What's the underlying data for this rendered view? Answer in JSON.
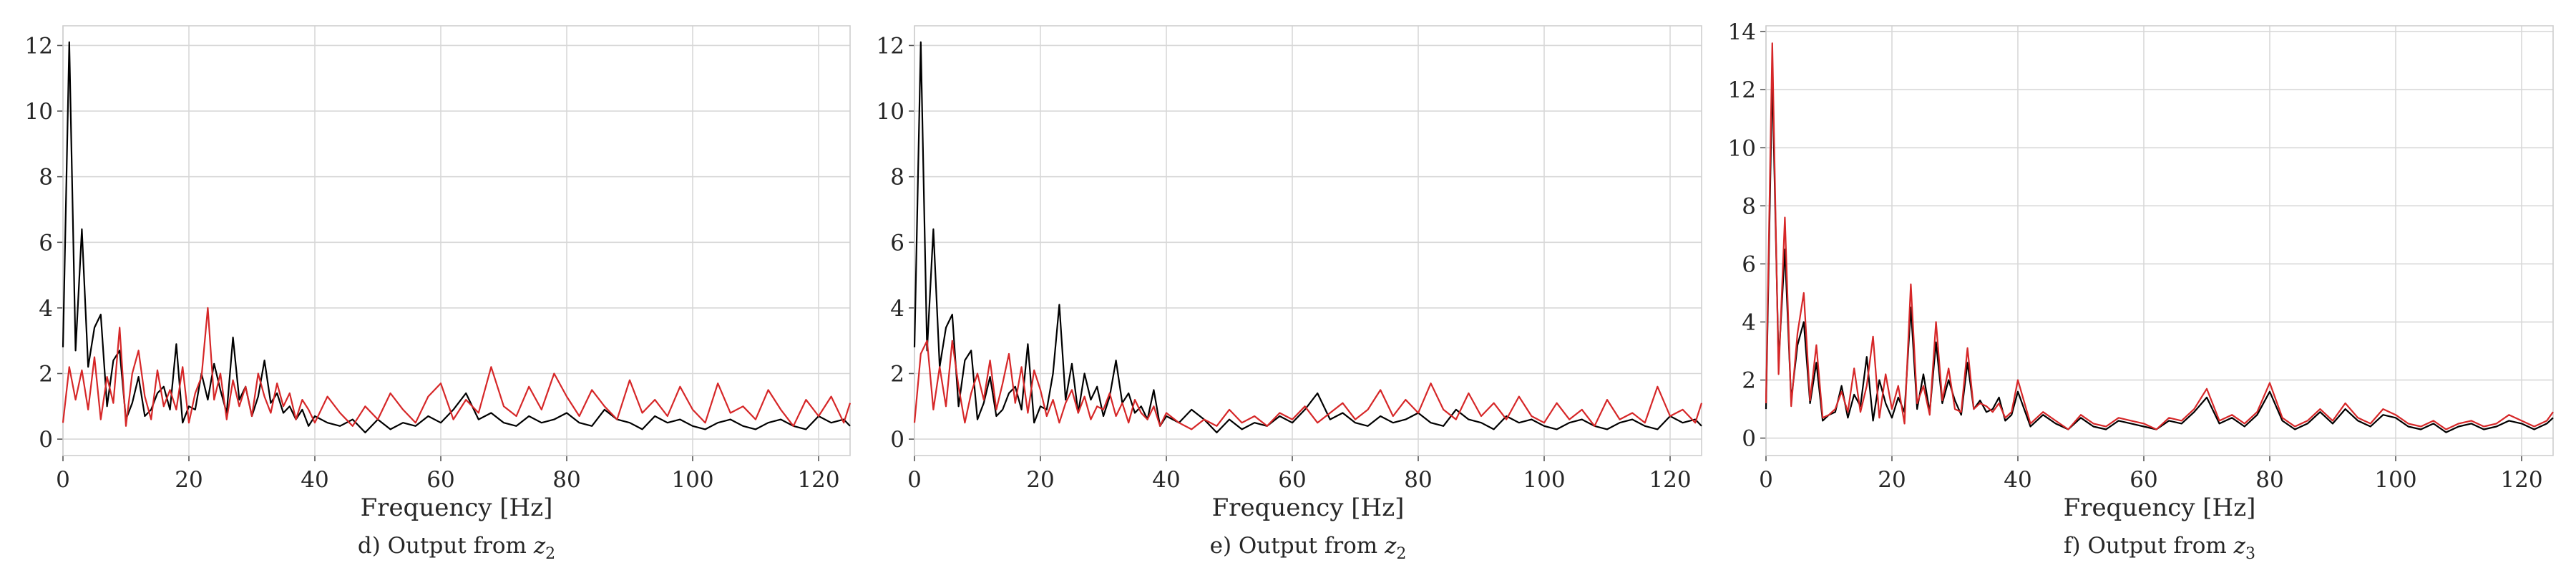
{
  "colors": {
    "series_black": "#000000",
    "series_red": "#d62728"
  },
  "chart_data": [
    {
      "type": "line",
      "caption_prefix": "d) Output from ",
      "caption_var": "z",
      "caption_sub": "2",
      "xlabel": "Frequency [Hz]",
      "ylabel": "",
      "xlim": [
        0,
        125
      ],
      "ylim": [
        -0.5,
        12.6
      ],
      "xticks": [
        0,
        20,
        40,
        60,
        80,
        100,
        120
      ],
      "yticks": [
        0,
        2,
        4,
        6,
        8,
        10,
        12
      ],
      "grid": true,
      "series": [
        {
          "color": "#000000",
          "x": [
            0,
            1,
            2,
            3,
            4,
            5,
            6,
            7,
            8,
            9,
            10,
            11,
            12,
            13,
            14,
            15,
            16,
            17,
            18,
            19,
            20,
            21,
            22,
            23,
            24,
            25,
            26,
            27,
            28,
            29,
            30,
            31,
            32,
            33,
            34,
            35,
            36,
            37,
            38,
            39,
            40,
            42,
            44,
            46,
            48,
            50,
            52,
            54,
            56,
            58,
            60,
            62,
            64,
            66,
            68,
            70,
            72,
            74,
            76,
            78,
            80,
            82,
            84,
            86,
            88,
            90,
            92,
            94,
            96,
            98,
            100,
            102,
            104,
            106,
            108,
            110,
            112,
            114,
            116,
            118,
            120,
            122,
            124,
            125
          ],
          "values": [
            2.8,
            12.1,
            2.7,
            6.4,
            2.2,
            3.4,
            3.8,
            1.0,
            2.4,
            2.7,
            0.6,
            1.1,
            1.9,
            0.7,
            0.9,
            1.4,
            1.6,
            0.9,
            2.9,
            0.5,
            1.0,
            0.9,
            2.0,
            1.2,
            2.3,
            1.5,
            0.8,
            3.1,
            1.2,
            1.6,
            0.7,
            1.3,
            2.4,
            1.1,
            1.4,
            0.8,
            1.0,
            0.6,
            0.9,
            0.4,
            0.7,
            0.5,
            0.4,
            0.6,
            0.2,
            0.6,
            0.3,
            0.5,
            0.4,
            0.7,
            0.5,
            0.9,
            1.4,
            0.6,
            0.8,
            0.5,
            0.4,
            0.7,
            0.5,
            0.6,
            0.8,
            0.5,
            0.4,
            0.9,
            0.6,
            0.5,
            0.3,
            0.7,
            0.5,
            0.6,
            0.4,
            0.3,
            0.5,
            0.6,
            0.4,
            0.3,
            0.5,
            0.6,
            0.4,
            0.3,
            0.7,
            0.5,
            0.6,
            0.4
          ]
        },
        {
          "color": "#d62728",
          "x": [
            0,
            1,
            2,
            3,
            4,
            5,
            6,
            7,
            8,
            9,
            10,
            11,
            12,
            13,
            14,
            15,
            16,
            17,
            18,
            19,
            20,
            21,
            22,
            23,
            24,
            25,
            26,
            27,
            28,
            29,
            30,
            31,
            32,
            33,
            34,
            35,
            36,
            37,
            38,
            39,
            40,
            42,
            44,
            46,
            48,
            50,
            52,
            54,
            56,
            58,
            60,
            62,
            64,
            66,
            68,
            70,
            72,
            74,
            76,
            78,
            80,
            82,
            84,
            86,
            88,
            90,
            92,
            94,
            96,
            98,
            100,
            102,
            104,
            106,
            108,
            110,
            112,
            114,
            116,
            118,
            120,
            122,
            124,
            125
          ],
          "values": [
            0.5,
            2.2,
            1.2,
            2.1,
            0.9,
            2.5,
            0.6,
            1.9,
            1.1,
            3.4,
            0.4,
            2.0,
            2.7,
            1.3,
            0.6,
            2.1,
            1.0,
            1.5,
            0.9,
            2.2,
            0.5,
            1.4,
            1.9,
            4.0,
            1.2,
            2.0,
            0.6,
            1.8,
            1.0,
            1.6,
            0.7,
            2.0,
            1.3,
            0.8,
            1.7,
            1.0,
            1.4,
            0.6,
            1.2,
            0.9,
            0.5,
            1.3,
            0.8,
            0.4,
            1.0,
            0.6,
            1.4,
            0.9,
            0.5,
            1.3,
            1.7,
            0.6,
            1.2,
            0.8,
            2.2,
            1.0,
            0.7,
            1.6,
            0.9,
            2.0,
            1.3,
            0.7,
            1.5,
            1.0,
            0.6,
            1.8,
            0.8,
            1.2,
            0.7,
            1.6,
            0.9,
            0.5,
            1.7,
            0.8,
            1.0,
            0.6,
            1.5,
            0.9,
            0.4,
            1.2,
            0.7,
            1.3,
            0.5,
            1.1
          ]
        }
      ]
    },
    {
      "type": "line",
      "caption_prefix": "e) Output from ",
      "caption_var": "z",
      "caption_sub": "2",
      "xlabel": "Frequency [Hz]",
      "ylabel": "",
      "xlim": [
        0,
        125
      ],
      "ylim": [
        -0.5,
        12.6
      ],
      "xticks": [
        0,
        20,
        40,
        60,
        80,
        100,
        120
      ],
      "yticks": [
        0,
        2,
        4,
        6,
        8,
        10,
        12
      ],
      "grid": true,
      "series": [
        {
          "color": "#000000",
          "x": [
            0,
            1,
            2,
            3,
            4,
            5,
            6,
            7,
            8,
            9,
            10,
            11,
            12,
            13,
            14,
            15,
            16,
            17,
            18,
            19,
            20,
            21,
            22,
            23,
            24,
            25,
            26,
            27,
            28,
            29,
            30,
            31,
            32,
            33,
            34,
            35,
            36,
            37,
            38,
            39,
            40,
            42,
            44,
            46,
            48,
            50,
            52,
            54,
            56,
            58,
            60,
            62,
            64,
            66,
            68,
            70,
            72,
            74,
            76,
            78,
            80,
            82,
            84,
            86,
            88,
            90,
            92,
            94,
            96,
            98,
            100,
            102,
            104,
            106,
            108,
            110,
            112,
            114,
            116,
            118,
            120,
            122,
            124,
            125
          ],
          "values": [
            2.8,
            12.1,
            2.7,
            6.4,
            2.2,
            3.4,
            3.8,
            1.0,
            2.4,
            2.7,
            0.6,
            1.1,
            1.9,
            0.7,
            0.9,
            1.4,
            1.6,
            0.9,
            2.9,
            0.5,
            1.0,
            0.9,
            2.0,
            4.1,
            1.2,
            2.3,
            0.8,
            2.0,
            1.2,
            1.6,
            0.7,
            1.3,
            2.4,
            1.1,
            1.4,
            0.8,
            1.0,
            0.6,
            1.5,
            0.4,
            0.7,
            0.5,
            0.9,
            0.6,
            0.2,
            0.6,
            0.3,
            0.5,
            0.4,
            0.7,
            0.5,
            0.9,
            1.4,
            0.6,
            0.8,
            0.5,
            0.4,
            0.7,
            0.5,
            0.6,
            0.8,
            0.5,
            0.4,
            0.9,
            0.6,
            0.5,
            0.3,
            0.7,
            0.5,
            0.6,
            0.4,
            0.3,
            0.5,
            0.6,
            0.4,
            0.3,
            0.5,
            0.6,
            0.4,
            0.3,
            0.7,
            0.5,
            0.6,
            0.4
          ]
        },
        {
          "color": "#d62728",
          "x": [
            0,
            1,
            2,
            3,
            4,
            5,
            6,
            7,
            8,
            9,
            10,
            11,
            12,
            13,
            14,
            15,
            16,
            17,
            18,
            19,
            20,
            21,
            22,
            23,
            24,
            25,
            26,
            27,
            28,
            29,
            30,
            31,
            32,
            33,
            34,
            35,
            36,
            37,
            38,
            39,
            40,
            42,
            44,
            46,
            48,
            50,
            52,
            54,
            56,
            58,
            60,
            62,
            64,
            66,
            68,
            70,
            72,
            74,
            76,
            78,
            80,
            82,
            84,
            86,
            88,
            90,
            92,
            94,
            96,
            98,
            100,
            102,
            104,
            106,
            108,
            110,
            112,
            114,
            116,
            118,
            120,
            122,
            124,
            125
          ],
          "values": [
            0.5,
            2.6,
            3.0,
            0.9,
            2.2,
            1.0,
            3.0,
            1.6,
            0.5,
            1.4,
            2.0,
            1.2,
            2.4,
            0.9,
            1.7,
            2.6,
            1.1,
            2.2,
            0.8,
            2.1,
            1.5,
            0.7,
            1.2,
            0.5,
            1.1,
            1.5,
            0.8,
            1.3,
            0.6,
            1.0,
            0.9,
            1.4,
            0.7,
            1.1,
            0.5,
            1.2,
            0.8,
            0.6,
            1.0,
            0.4,
            0.8,
            0.5,
            0.3,
            0.6,
            0.4,
            0.9,
            0.5,
            0.7,
            0.4,
            0.8,
            0.6,
            1.0,
            0.5,
            0.8,
            1.1,
            0.6,
            0.9,
            1.5,
            0.7,
            1.2,
            0.8,
            1.7,
            0.9,
            0.6,
            1.4,
            0.7,
            1.1,
            0.6,
            1.3,
            0.7,
            0.5,
            1.1,
            0.6,
            0.9,
            0.4,
            1.2,
            0.6,
            0.8,
            0.5,
            1.6,
            0.7,
            0.9,
            0.5,
            1.1
          ]
        }
      ]
    },
    {
      "type": "line",
      "caption_prefix": "f) Output from ",
      "caption_var": "z",
      "caption_sub": "3",
      "xlabel": "Frequency [Hz]",
      "ylabel": "",
      "xlim": [
        0,
        125
      ],
      "ylim": [
        -0.6,
        14.2
      ],
      "xticks": [
        0,
        20,
        40,
        60,
        80,
        100,
        120
      ],
      "yticks": [
        0,
        2,
        4,
        6,
        8,
        10,
        12,
        14
      ],
      "grid": true,
      "series": [
        {
          "color": "#000000",
          "x": [
            0,
            1,
            2,
            3,
            4,
            5,
            6,
            7,
            8,
            9,
            10,
            11,
            12,
            13,
            14,
            15,
            16,
            17,
            18,
            19,
            20,
            21,
            22,
            23,
            24,
            25,
            26,
            27,
            28,
            29,
            30,
            31,
            32,
            33,
            34,
            35,
            36,
            37,
            38,
            39,
            40,
            42,
            44,
            46,
            48,
            50,
            52,
            54,
            56,
            58,
            60,
            62,
            64,
            66,
            68,
            70,
            72,
            74,
            76,
            78,
            80,
            82,
            84,
            86,
            88,
            90,
            92,
            94,
            96,
            98,
            100,
            102,
            104,
            106,
            108,
            110,
            112,
            114,
            116,
            118,
            120,
            122,
            124,
            125
          ],
          "values": [
            1.0,
            12.5,
            2.6,
            6.5,
            1.3,
            3.2,
            4.0,
            1.2,
            2.6,
            0.6,
            0.8,
            0.9,
            1.8,
            0.7,
            1.5,
            1.1,
            2.8,
            0.6,
            2.0,
            1.2,
            0.7,
            1.4,
            0.9,
            4.5,
            1.0,
            2.2,
            0.9,
            3.3,
            1.2,
            2.0,
            1.3,
            0.8,
            2.6,
            1.0,
            1.3,
            0.9,
            1.0,
            1.4,
            0.6,
            0.8,
            1.6,
            0.4,
            0.8,
            0.5,
            0.3,
            0.7,
            0.4,
            0.3,
            0.6,
            0.5,
            0.4,
            0.3,
            0.6,
            0.5,
            0.9,
            1.4,
            0.5,
            0.7,
            0.4,
            0.8,
            1.6,
            0.6,
            0.3,
            0.5,
            0.9,
            0.5,
            1.0,
            0.6,
            0.4,
            0.8,
            0.7,
            0.4,
            0.3,
            0.5,
            0.2,
            0.4,
            0.5,
            0.3,
            0.4,
            0.6,
            0.5,
            0.3,
            0.5,
            0.7
          ]
        },
        {
          "color": "#d62728",
          "x": [
            0,
            1,
            2,
            3,
            4,
            5,
            6,
            7,
            8,
            9,
            10,
            11,
            12,
            13,
            14,
            15,
            16,
            17,
            18,
            19,
            20,
            21,
            22,
            23,
            24,
            25,
            26,
            27,
            28,
            29,
            30,
            31,
            32,
            33,
            34,
            35,
            36,
            37,
            38,
            39,
            40,
            42,
            44,
            46,
            48,
            50,
            52,
            54,
            56,
            58,
            60,
            62,
            64,
            66,
            68,
            70,
            72,
            74,
            76,
            78,
            80,
            82,
            84,
            86,
            88,
            90,
            92,
            94,
            96,
            98,
            100,
            102,
            104,
            106,
            108,
            110,
            112,
            114,
            116,
            118,
            120,
            122,
            124,
            125
          ],
          "values": [
            1.2,
            13.6,
            2.2,
            7.6,
            1.1,
            3.6,
            5.0,
            1.3,
            3.2,
            0.7,
            0.8,
            1.0,
            1.6,
            0.9,
            2.4,
            0.9,
            1.8,
            3.5,
            0.7,
            2.2,
            1.0,
            1.8,
            0.5,
            5.3,
            1.2,
            1.8,
            0.8,
            4.0,
            1.3,
            2.4,
            1.0,
            0.9,
            3.1,
            1.0,
            1.2,
            1.1,
            0.9,
            1.2,
            0.7,
            0.9,
            2.0,
            0.5,
            0.9,
            0.6,
            0.3,
            0.8,
            0.5,
            0.4,
            0.7,
            0.6,
            0.5,
            0.3,
            0.7,
            0.6,
            1.0,
            1.7,
            0.6,
            0.8,
            0.5,
            0.9,
            1.9,
            0.7,
            0.4,
            0.6,
            1.0,
            0.6,
            1.2,
            0.7,
            0.5,
            1.0,
            0.8,
            0.5,
            0.4,
            0.6,
            0.3,
            0.5,
            0.6,
            0.4,
            0.5,
            0.8,
            0.6,
            0.4,
            0.6,
            0.9
          ]
        }
      ]
    }
  ]
}
